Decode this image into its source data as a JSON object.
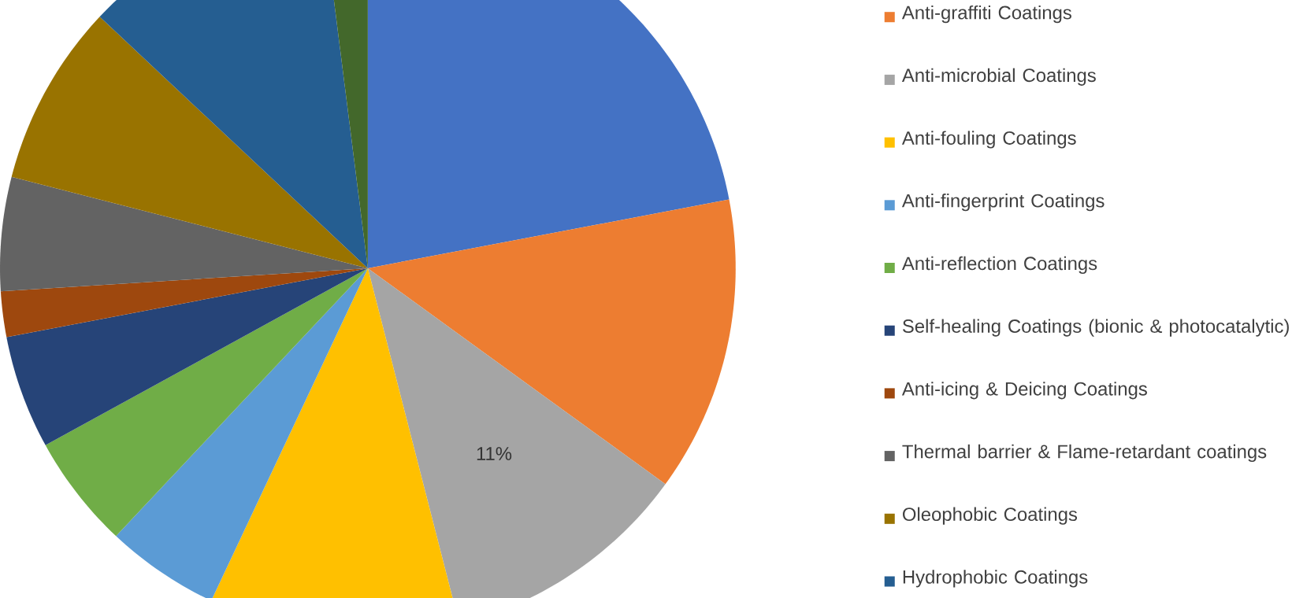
{
  "chart_data": {
    "type": "pie",
    "categories": [
      null,
      "Anti-graffiti Coatings",
      "Anti-microbial Coatings",
      "Anti-fouling Coatings",
      "Anti-fingerprint Coatings",
      "Anti-reflection Coatings",
      "Self-healing Coatings (bionic & photocatalytic)",
      "Anti-icing & Deicing Coatings",
      "Thermal barrier & Flame-retardant coatings",
      "Oleophobic Coatings",
      "Hydrophobic Coatings",
      null
    ],
    "values": [
      22,
      13,
      11,
      11,
      5,
      5,
      5,
      2,
      5,
      8,
      11,
      2
    ],
    "colors": [
      "#4472c4",
      "#ed7d31",
      "#a5a5a5",
      "#ffc000",
      "#5b9bd5",
      "#70ad47",
      "#264478",
      "#9e480e",
      "#636363",
      "#997300",
      "#255e91",
      "#43682b"
    ],
    "value_labels": [
      null,
      null,
      "11%",
      null,
      null,
      null,
      null,
      null,
      null,
      null,
      null,
      null
    ],
    "legend": "right"
  }
}
